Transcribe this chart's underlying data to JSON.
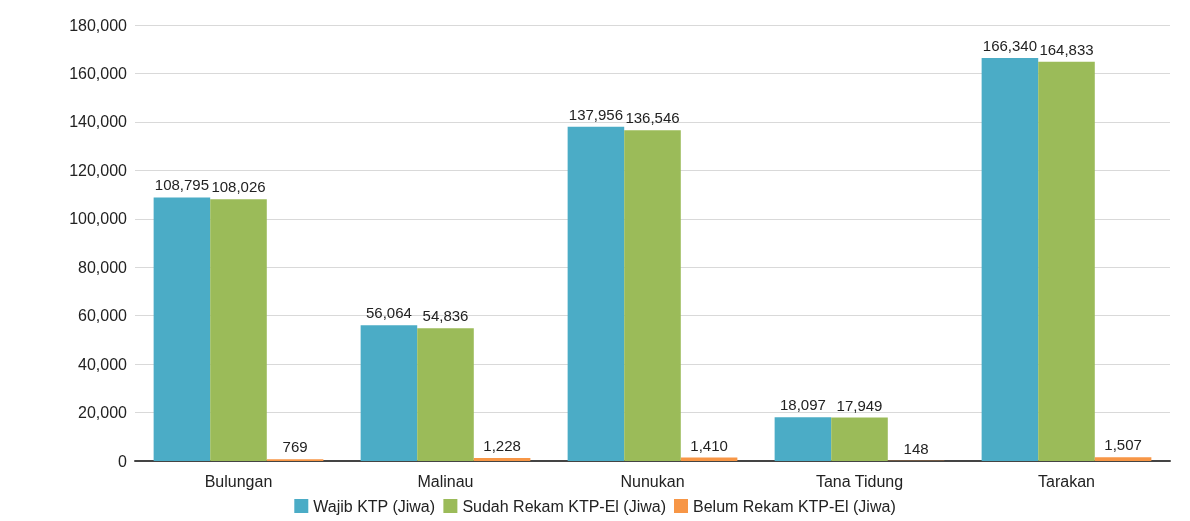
{
  "chart_data": {
    "type": "bar",
    "categories": [
      "Bulungan",
      "Malinau",
      "Nunukan",
      "Tana Tidung",
      "Tarakan"
    ],
    "series": [
      {
        "name": "Wajib KTP (Jiwa)",
        "color": "#4bacc6",
        "values": [
          108795,
          56064,
          137956,
          18097,
          166340
        ],
        "value_labels": [
          "108,795",
          "56,064",
          "137,956",
          "18,097",
          "166,340"
        ]
      },
      {
        "name": "Sudah Rekam KTP-El (Jiwa)",
        "color": "#9bbb59",
        "values": [
          108026,
          54836,
          136546,
          17949,
          164833
        ],
        "value_labels": [
          "108,026",
          "54,836",
          "136,546",
          "17,949",
          "164,833"
        ]
      },
      {
        "name": "Belum Rekam KTP-El (Jiwa)",
        "color": "#f79646",
        "values": [
          769,
          1228,
          1410,
          148,
          1507
        ],
        "value_labels": [
          "769",
          "1,228",
          "1,410",
          "148",
          "1,507"
        ]
      }
    ],
    "ylim": [
      0,
      180000
    ],
    "yticks": [
      0,
      {
        "value": 20000,
        "label": "20,000"
      },
      {
        "value": 40000,
        "label": "40,000"
      },
      {
        "value": 60000,
        "label": "60,000"
      },
      {
        "value": 80000,
        "label": "80,000"
      },
      {
        "value": 100000,
        "label": "100,000"
      },
      {
        "value": 120000,
        "label": "120,000"
      },
      {
        "value": 140000,
        "label": "140,000"
      },
      {
        "value": 160000,
        "label": "160,000"
      },
      {
        "value": 180000,
        "label": "180,000"
      }
    ],
    "grid": "y",
    "legend": "bottom"
  }
}
